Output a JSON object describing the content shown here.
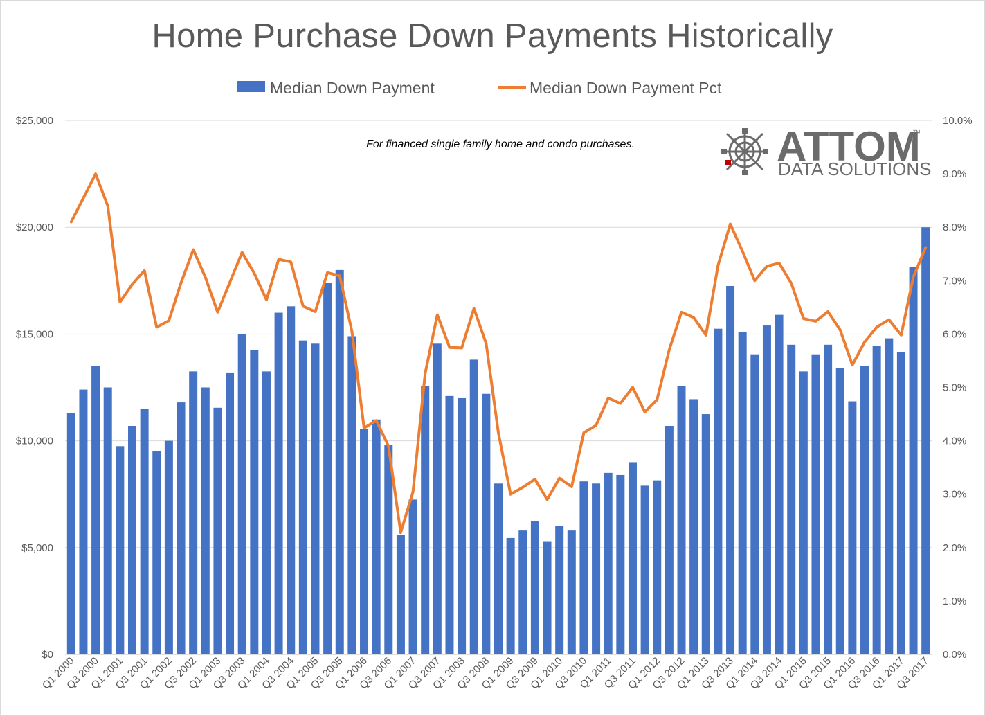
{
  "chart_data": {
    "type": "bar",
    "title": "Home Purchase Down Payments Historically",
    "annotation": "For financed single family home and condo purchases.",
    "logo": {
      "name": "ATTOM",
      "tagline": "DATA SOLUTIONS",
      "trademark": "™"
    },
    "legend_position": "top",
    "grid": true,
    "categories": [
      "Q1 2000",
      "Q2 2000",
      "Q3 2000",
      "Q4 2000",
      "Q1 2001",
      "Q2 2001",
      "Q3 2001",
      "Q4 2001",
      "Q1 2002",
      "Q2 2002",
      "Q3 2002",
      "Q4 2002",
      "Q1 2003",
      "Q2 2003",
      "Q3 2003",
      "Q4 2003",
      "Q1 2004",
      "Q2 2004",
      "Q3 2004",
      "Q4 2004",
      "Q1 2005",
      "Q2 2005",
      "Q3 2005",
      "Q4 2005",
      "Q1 2006",
      "Q2 2006",
      "Q3 2006",
      "Q4 2006",
      "Q1 2007",
      "Q2 2007",
      "Q3 2007",
      "Q4 2007",
      "Q1 2008",
      "Q2 2008",
      "Q3 2008",
      "Q4 2008",
      "Q1 2009",
      "Q2 2009",
      "Q3 2009",
      "Q4 2009",
      "Q1 2010",
      "Q2 2010",
      "Q3 2010",
      "Q4 2010",
      "Q1 2011",
      "Q2 2011",
      "Q3 2011",
      "Q4 2011",
      "Q1 2012",
      "Q2 2012",
      "Q3 2012",
      "Q4 2012",
      "Q1 2013",
      "Q2 2013",
      "Q3 2013",
      "Q4 2013",
      "Q1 2014",
      "Q2 2014",
      "Q3 2014",
      "Q4 2014",
      "Q1 2015",
      "Q2 2015",
      "Q3 2015",
      "Q4 2015",
      "Q1 2016",
      "Q2 2016",
      "Q3 2016",
      "Q4 2016",
      "Q1 2017",
      "Q2 2017",
      "Q3 2017"
    ],
    "x_tick_labels": [
      "Q1 2000",
      "Q3 2000",
      "Q1 2001",
      "Q3 2001",
      "Q1 2002",
      "Q3 2002",
      "Q1 2003",
      "Q3 2003",
      "Q1 2004",
      "Q3 2004",
      "Q1 2005",
      "Q3 2005",
      "Q1 2006",
      "Q3 2006",
      "Q1 2007",
      "Q3 2007",
      "Q1 2008",
      "Q3 2008",
      "Q1 2009",
      "Q3 2009",
      "Q1 2010",
      "Q3 2010",
      "Q1 2011",
      "Q3 2011",
      "Q1 2012",
      "Q3 2012",
      "Q1 2013",
      "Q3 2013",
      "Q1 2014",
      "Q3 2014",
      "Q1 2015",
      "Q3 2015",
      "Q1 2016",
      "Q3 2016",
      "Q1 2017",
      "Q3 2017"
    ],
    "y_left": {
      "min": 0,
      "max": 25000,
      "ticks": [
        "$0",
        "$5,000",
        "$10,000",
        "$15,000",
        "$20,000",
        "$25,000"
      ]
    },
    "y_right": {
      "min": 0,
      "max": 10,
      "unit": "%",
      "ticks": [
        "0.0%",
        "1.0%",
        "2.0%",
        "3.0%",
        "4.0%",
        "5.0%",
        "6.0%",
        "7.0%",
        "8.0%",
        "9.0%",
        "10.0%"
      ]
    },
    "series": [
      {
        "name": "Median Down Payment",
        "type": "bar",
        "axis": "left",
        "color": "#4472c4",
        "values": [
          11300,
          12400,
          13500,
          12500,
          9750,
          10700,
          11500,
          9500,
          10000,
          11800,
          13250,
          12500,
          11550,
          13200,
          15000,
          14250,
          13250,
          16000,
          16300,
          14700,
          14550,
          17400,
          18000,
          14900,
          10550,
          11000,
          9800,
          5600,
          7250,
          12550,
          14550,
          12100,
          12000,
          13800,
          12200,
          8000,
          5450,
          5800,
          6250,
          5300,
          6000,
          5800,
          8100,
          8000,
          8500,
          8400,
          9000,
          7900,
          8150,
          10700,
          12550,
          11950,
          11250,
          15250,
          17250,
          15100,
          14050,
          15400,
          15900,
          14500,
          13250,
          14050,
          14500,
          13400,
          11850,
          13500,
          14450,
          14800,
          14150,
          18150,
          20000
        ]
      },
      {
        "name": "Median Down Payment Pct",
        "type": "line",
        "axis": "right",
        "color": "#ed7d31",
        "values": [
          8.1,
          8.55,
          9.0,
          8.4,
          6.6,
          6.93,
          7.19,
          6.13,
          6.25,
          6.96,
          7.58,
          7.06,
          6.41,
          6.97,
          7.53,
          7.14,
          6.64,
          7.4,
          7.35,
          6.52,
          6.42,
          7.15,
          7.09,
          6.05,
          4.24,
          4.38,
          3.9,
          2.28,
          3.04,
          5.26,
          6.36,
          5.75,
          5.74,
          6.48,
          5.82,
          4.15,
          3.0,
          3.13,
          3.28,
          2.9,
          3.3,
          3.14,
          4.15,
          4.29,
          4.8,
          4.7,
          5.0,
          4.54,
          4.77,
          5.71,
          6.41,
          6.31,
          5.98,
          7.29,
          8.06,
          7.55,
          7.0,
          7.27,
          7.33,
          6.95,
          6.29,
          6.24,
          6.42,
          6.08,
          5.42,
          5.85,
          6.13,
          6.27,
          5.98,
          7.07,
          7.62
        ]
      }
    ]
  }
}
